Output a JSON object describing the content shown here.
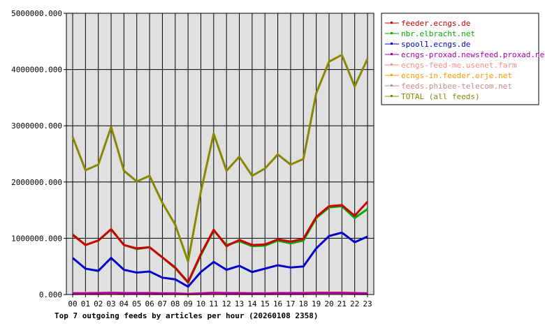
{
  "chart_data": {
    "type": "line",
    "caption": "Top 7 outgoing feeds by articles per hour (20260108 2358)",
    "x": [
      "00",
      "01",
      "02",
      "03",
      "04",
      "05",
      "06",
      "07",
      "08",
      "09",
      "10",
      "11",
      "12",
      "13",
      "14",
      "15",
      "16",
      "17",
      "18",
      "19",
      "20",
      "21",
      "22",
      "23"
    ],
    "yticks": [
      0,
      1000000,
      2000000,
      3000000,
      4000000,
      5000000
    ],
    "ytick_labels": [
      "0.000",
      "1000000.000",
      "2000000.000",
      "3000000.000",
      "4000000.000",
      "5000000.000"
    ],
    "ylim": [
      0,
      5000000
    ],
    "grid": true,
    "legend_position": "top-right",
    "series": [
      {
        "name": "feeder.ecngs.de",
        "color": "#cc0000",
        "values": [
          1060000,
          880000,
          960000,
          1160000,
          880000,
          820000,
          840000,
          660000,
          480000,
          220000,
          720000,
          1150000,
          860000,
          970000,
          880000,
          890000,
          980000,
          940000,
          990000,
          1380000,
          1570000,
          1590000,
          1400000,
          1650000
        ]
      },
      {
        "name": "nbr.elbracht.net",
        "color": "#00aa00",
        "values": [
          1070000,
          880000,
          960000,
          1160000,
          880000,
          810000,
          840000,
          660000,
          470000,
          210000,
          700000,
          1140000,
          880000,
          950000,
          860000,
          870000,
          960000,
          910000,
          960000,
          1360000,
          1550000,
          1570000,
          1360000,
          1520000
        ]
      },
      {
        "name": "spool1.ecngs.de",
        "color": "#0000cc",
        "values": [
          650000,
          460000,
          420000,
          650000,
          440000,
          390000,
          410000,
          300000,
          270000,
          140000,
          400000,
          580000,
          440000,
          510000,
          400000,
          460000,
          520000,
          480000,
          500000,
          820000,
          1040000,
          1100000,
          930000,
          1030000
        ]
      },
      {
        "name": "ecngs-proxad.newsfeed.proxad.net",
        "color": "#aa00aa",
        "values": [
          20000,
          20000,
          25000,
          30000,
          25000,
          25000,
          25000,
          20000,
          20000,
          10000,
          20000,
          30000,
          25000,
          25000,
          20000,
          20000,
          25000,
          25000,
          25000,
          30000,
          30000,
          30000,
          25000,
          20000
        ]
      },
      {
        "name": "ecngs-feed-me.usenet.farm",
        "color": "#ff8888",
        "values": [
          30000,
          30000,
          30000,
          35000,
          30000,
          30000,
          30000,
          25000,
          25000,
          15000,
          25000,
          35000,
          30000,
          30000,
          25000,
          25000,
          30000,
          30000,
          30000,
          35000,
          35000,
          35000,
          30000,
          25000
        ]
      },
      {
        "name": "ecngs-in.feeder.erje.net",
        "color": "#ff9900",
        "values": [
          10000,
          10000,
          10000,
          12000,
          10000,
          10000,
          10000,
          8000,
          8000,
          5000,
          8000,
          12000,
          10000,
          10000,
          8000,
          8000,
          10000,
          10000,
          10000,
          12000,
          12000,
          12000,
          10000,
          8000
        ]
      },
      {
        "name": "feeds.phibee-telecom.net",
        "color": "#cc8888",
        "values": [
          25000,
          25000,
          25000,
          30000,
          25000,
          25000,
          25000,
          20000,
          20000,
          12000,
          20000,
          30000,
          25000,
          25000,
          20000,
          20000,
          25000,
          25000,
          25000,
          30000,
          30000,
          30000,
          25000,
          20000
        ]
      },
      {
        "name": "TOTAL (all feeds)",
        "color": "#888800",
        "values": [
          2800000,
          2210000,
          2310000,
          2980000,
          2200000,
          2010000,
          2110000,
          1630000,
          1240000,
          590000,
          1830000,
          2860000,
          2200000,
          2450000,
          2110000,
          2240000,
          2490000,
          2310000,
          2410000,
          3580000,
          4140000,
          4260000,
          3700000,
          4190000
        ]
      }
    ]
  }
}
